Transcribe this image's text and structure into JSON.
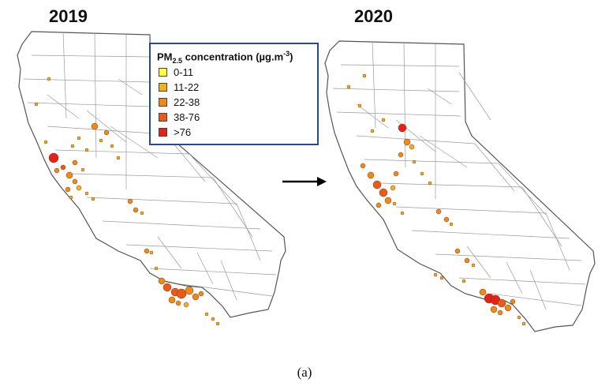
{
  "panels": [
    {
      "year": "2019"
    },
    {
      "year": "2020"
    }
  ],
  "legend": {
    "title_prefix": "PM",
    "title_sub": "2.5",
    "title_suffix": " concentration (µg.m",
    "title_sup": "-3",
    "title_end": ")",
    "items": [
      {
        "label": "0-11",
        "color": "#ffff33"
      },
      {
        "label": "11-22",
        "color": "#f2b01e"
      },
      {
        "label": "22-38",
        "color": "#ee8a1c"
      },
      {
        "label": "38-76",
        "color": "#ec5a17"
      },
      {
        "label": ">76",
        "color": "#e8201a"
      }
    ]
  },
  "caption": "(a)",
  "colors": {
    "state_outline": "#555555",
    "county_lines": "#9a9a9a",
    "legend_border": "#2b4a8c",
    "arrow": "#000000"
  },
  "icons": {
    "arrow": "right-arrow-icon"
  }
}
